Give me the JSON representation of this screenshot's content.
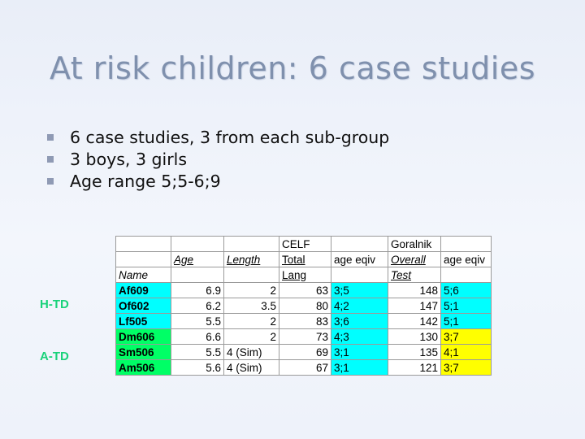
{
  "title": "At risk children: 6 case studies",
  "bullets": [
    "6 case studies, 3 from each sub-group",
    "3 boys, 3 girls",
    "Age range 5;5-6;9"
  ],
  "group_labels": {
    "htd": "H-TD",
    "atd": "A-TD"
  },
  "table": {
    "header1": {
      "celf": "CELF",
      "goralnik": "Goralnik"
    },
    "header2": {
      "age": "Age",
      "length": "Length",
      "total": "Total",
      "age_eqiv1": "age eqiv",
      "overall": "Overall",
      "age_eqiv2": "age eqiv"
    },
    "header3": {
      "name": "Name",
      "lang": "Lang",
      "test": "Test"
    },
    "rows": [
      {
        "name": "Af609",
        "age": "6.9",
        "length": "2",
        "celf_total": "63",
        "celf_age": "3;5",
        "overall": "148",
        "gor_age": "5;6"
      },
      {
        "name": "Of602",
        "age": "6.2",
        "length": "3.5",
        "celf_total": "80",
        "celf_age": "4;2",
        "overall": "147",
        "gor_age": "5;1"
      },
      {
        "name": "Lf505",
        "age": "5.5",
        "length": "2",
        "celf_total": "83",
        "celf_age": "3;6",
        "overall": "142",
        "gor_age": "5;1"
      },
      {
        "name": "Dm606",
        "age": "6.6",
        "length": "2",
        "celf_total": "73",
        "celf_age": "4;3",
        "overall": "130",
        "gor_age": "3;7"
      },
      {
        "name": "Sm506",
        "age": "5.5",
        "length": "4 (Sim)",
        "celf_total": "69",
        "celf_age": "3;1",
        "overall": "135",
        "gor_age": "4;1"
      },
      {
        "name": "Am506",
        "age": "5.6",
        "length": "4 (Sim)",
        "celf_total": "67",
        "celf_age": "3;1",
        "overall": "121",
        "gor_age": "3;7"
      }
    ],
    "colors": {
      "cyan": "#00ffff",
      "yellow": "#ffff00",
      "green": "#00ff66"
    }
  }
}
